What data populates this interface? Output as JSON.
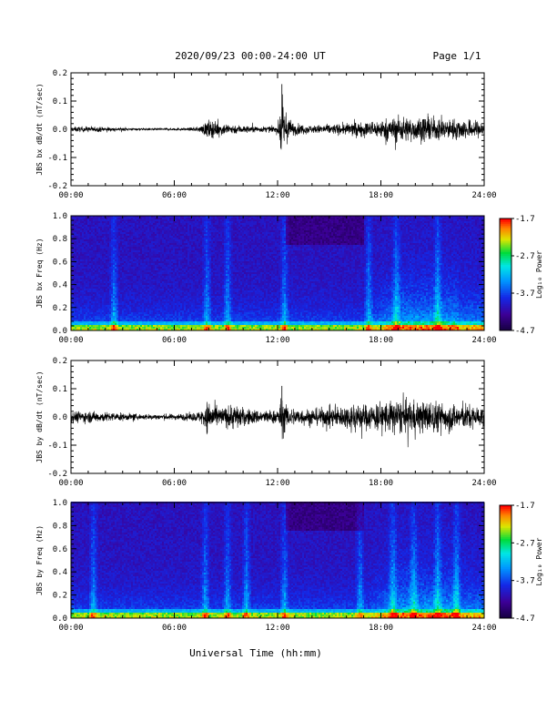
{
  "header": {
    "title": "2020/09/23  00:00-24:00 UT",
    "page": "Page 1/1"
  },
  "xlabel": "Universal Time (hh:mm)",
  "colorbar_label": "Log₁₀ Power",
  "colors": {
    "trace": "#000000",
    "spectrogram_low": "#1a0a6b",
    "spectrogram_high": "#ff0000"
  },
  "chart_data": [
    {
      "type": "line",
      "panel": "bx-waveform",
      "ylabel": "JBS bx dB/dt (nT/sec)",
      "xlim": [
        "00:00",
        "24:00"
      ],
      "ylim": [
        -0.2,
        0.2
      ],
      "xticks": [
        "00:00",
        "06:00",
        "12:00",
        "18:00",
        "24:00"
      ],
      "yticks": [
        "-0.2",
        "-0.1",
        "0.0",
        "0.1",
        "0.2"
      ],
      "series": [
        {
          "description_hours": [
            0,
            1,
            2,
            3,
            4,
            5,
            6,
            7,
            7.5,
            8,
            8.5,
            9,
            10,
            11,
            12,
            12.25,
            12.5,
            13,
            14,
            15,
            16,
            16.5,
            17,
            17.5,
            18,
            18.5,
            19,
            19.5,
            20,
            20.5,
            21,
            21.5,
            22,
            22.5,
            23,
            24
          ],
          "amplitude": [
            0.012,
            0.015,
            0.012,
            0.008,
            0.006,
            0.006,
            0.006,
            0.008,
            0.015,
            0.05,
            0.035,
            0.03,
            0.02,
            0.015,
            0.015,
            0.16,
            0.07,
            0.03,
            0.02,
            0.025,
            0.03,
            0.04,
            0.035,
            0.04,
            0.05,
            0.055,
            0.07,
            0.065,
            0.06,
            0.065,
            0.06,
            0.055,
            0.05,
            0.055,
            0.05,
            0.04
          ]
        }
      ]
    },
    {
      "type": "heatmap",
      "panel": "bx-spectrogram",
      "ylabel": "JBS bx Freq (Hz)",
      "xlim": [
        "00:00",
        "24:00"
      ],
      "ylim": [
        0.0,
        1.0
      ],
      "xticks": [
        "00:00",
        "06:00",
        "12:00",
        "18:00",
        "24:00"
      ],
      "yticks": [
        "0.0",
        "0.2",
        "0.4",
        "0.6",
        "0.8",
        "1.0"
      ],
      "colorbar": {
        "min": -4.7,
        "max": -1.7,
        "ticks": [
          "-1.7",
          "-2.7",
          "-3.7",
          "-4.7"
        ]
      },
      "bursts_hours": [
        2.5,
        7.9,
        9.1,
        12.4,
        17.3,
        18.9,
        21.3
      ]
    },
    {
      "type": "line",
      "panel": "by-waveform",
      "ylabel": "JBS by dB/dt (nT/sec)",
      "xlim": [
        "00:00",
        "24:00"
      ],
      "ylim": [
        -0.2,
        0.2
      ],
      "xticks": [
        "00:00",
        "06:00",
        "12:00",
        "18:00",
        "24:00"
      ],
      "yticks": [
        "-0.2",
        "-0.1",
        "0.0",
        "0.1",
        "0.2"
      ],
      "series": [
        {
          "description_hours": [
            0,
            1,
            2,
            3,
            4,
            5,
            6,
            7,
            7.5,
            8,
            8.5,
            9,
            9.5,
            10,
            11,
            12,
            12.25,
            12.5,
            13,
            14,
            15,
            16,
            16.5,
            17,
            17.5,
            18,
            18.5,
            19,
            19.5,
            20,
            20.5,
            21,
            21.5,
            22,
            22.5,
            23,
            24
          ],
          "amplitude": [
            0.03,
            0.03,
            0.025,
            0.02,
            0.015,
            0.015,
            0.015,
            0.02,
            0.03,
            0.09,
            0.05,
            0.05,
            0.07,
            0.045,
            0.035,
            0.035,
            0.11,
            0.06,
            0.045,
            0.04,
            0.05,
            0.06,
            0.08,
            0.065,
            0.07,
            0.08,
            0.085,
            0.09,
            0.08,
            0.085,
            0.08,
            0.09,
            0.07,
            0.075,
            0.065,
            0.065,
            0.05
          ]
        }
      ]
    },
    {
      "type": "heatmap",
      "panel": "by-spectrogram",
      "ylabel": "JBS by Freq (Hz)",
      "xlim": [
        "00:00",
        "24:00"
      ],
      "ylim": [
        0.0,
        1.0
      ],
      "xticks": [
        "00:00",
        "06:00",
        "12:00",
        "18:00",
        "24:00"
      ],
      "yticks": [
        "0.0",
        "0.2",
        "0.4",
        "0.6",
        "0.8",
        "1.0"
      ],
      "colorbar": {
        "min": -4.7,
        "max": -1.7,
        "ticks": [
          "-1.7",
          "-2.7",
          "-3.7",
          "-4.7"
        ]
      },
      "bursts_hours": [
        1.3,
        7.8,
        9.1,
        10.2,
        12.4,
        16.8,
        18.7,
        19.9,
        21.3,
        22.4
      ]
    }
  ]
}
